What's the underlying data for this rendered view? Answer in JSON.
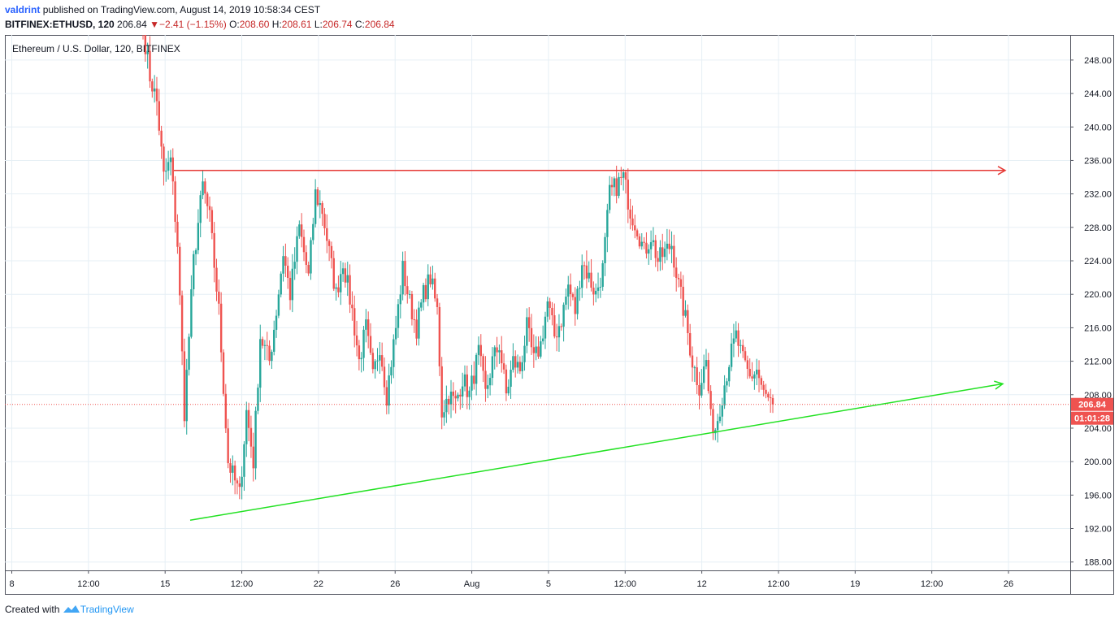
{
  "header": {
    "author": "valdrint",
    "published_text": "published on TradingView.com, August 14, 2019 10:58:34 CEST",
    "symbol": "BITFINEX:ETHUSD, 120",
    "last": "206.84",
    "change": "−2.41 (−1.15%)",
    "o_label": "O:",
    "o": "208.60",
    "h_label": "H:",
    "h": "208.61",
    "l_label": "L:",
    "l": "206.74",
    "c_label": "C:",
    "c": "206.84"
  },
  "chart_legend": "Ethereum / U.S. Dollar, 120, BITFINEX",
  "price_tag": {
    "price": "206.84",
    "countdown": "01:01:28"
  },
  "footer": {
    "created": "Created with",
    "brand": "TradingView"
  },
  "colors": {
    "up": "#26a69a",
    "down": "#ef5350",
    "resistance": "#e53935",
    "support": "#22e122",
    "price_line": "#ef5350",
    "grid": "#e6eff5"
  },
  "chart_data": {
    "type": "candlestick",
    "ylim": [
      187,
      251
    ],
    "y_ticks": [
      "188.00",
      "192.00",
      "196.00",
      "200.00",
      "204.00",
      "208.00",
      "212.00",
      "216.00",
      "220.00",
      "224.00",
      "228.00",
      "232.00",
      "236.00",
      "240.00",
      "244.00",
      "248.00"
    ],
    "x_ticks": [
      "8",
      "12:00",
      "15",
      "12:00",
      "22",
      "26",
      "Aug",
      "5",
      "12:00",
      "12",
      "12:00",
      "19",
      "12:00",
      "26"
    ],
    "last_price": 206.84,
    "resistance_price": 234.8,
    "support_trendline_prices": [
      193.0,
      209.3
    ],
    "anchors": [
      [
        0,
        252
      ],
      [
        3,
        246
      ],
      [
        6,
        243
      ],
      [
        9,
        234
      ],
      [
        12,
        236
      ],
      [
        15,
        226
      ],
      [
        18,
        206
      ],
      [
        22,
        224
      ],
      [
        26,
        233
      ],
      [
        29,
        229
      ],
      [
        33,
        218
      ],
      [
        37,
        200
      ],
      [
        42,
        196
      ],
      [
        45,
        206
      ],
      [
        48,
        200
      ],
      [
        51,
        215
      ],
      [
        55,
        212
      ],
      [
        58,
        218
      ],
      [
        61,
        225
      ],
      [
        64,
        220
      ],
      [
        68,
        228
      ],
      [
        72,
        222
      ],
      [
        75,
        232
      ],
      [
        78,
        230
      ],
      [
        81,
        225
      ],
      [
        84,
        220
      ],
      [
        87,
        224
      ],
      [
        91,
        218
      ],
      [
        94,
        212
      ],
      [
        97,
        216
      ],
      [
        100,
        210
      ],
      [
        103,
        214
      ],
      [
        106,
        208
      ],
      [
        110,
        216
      ],
      [
        113,
        223
      ],
      [
        116,
        219
      ],
      [
        119,
        216
      ],
      [
        122,
        220
      ],
      [
        125,
        222
      ],
      [
        128,
        218
      ],
      [
        130,
        206
      ],
      [
        133,
        208
      ],
      [
        136,
        207
      ],
      [
        139,
        210
      ],
      [
        142,
        208
      ],
      [
        146,
        213
      ],
      [
        149,
        208
      ],
      [
        152,
        212
      ],
      [
        155,
        214
      ],
      [
        158,
        208
      ],
      [
        161,
        212
      ],
      [
        164,
        211
      ],
      [
        167,
        216
      ],
      [
        170,
        212
      ],
      [
        173,
        214
      ],
      [
        176,
        219
      ],
      [
        179,
        215
      ],
      [
        182,
        217
      ],
      [
        185,
        221
      ],
      [
        188,
        218
      ],
      [
        191,
        224
      ],
      [
        194,
        222
      ],
      [
        197,
        220
      ],
      [
        200,
        223
      ],
      [
        203,
        232
      ],
      [
        206,
        233
      ],
      [
        209,
        234
      ],
      [
        212,
        230
      ],
      [
        215,
        228
      ],
      [
        218,
        225
      ],
      [
        221,
        227
      ],
      [
        224,
        224
      ],
      [
        227,
        225
      ],
      [
        230,
        226
      ],
      [
        233,
        221
      ],
      [
        236,
        217
      ],
      [
        239,
        212
      ],
      [
        242,
        209
      ],
      [
        245,
        212
      ],
      [
        247,
        205
      ],
      [
        249,
        204
      ],
      [
        252,
        208
      ],
      [
        255,
        212
      ],
      [
        258,
        215
      ],
      [
        261,
        212
      ],
      [
        264,
        210
      ],
      [
        267,
        211
      ],
      [
        270,
        208
      ],
      [
        273,
        207
      ],
      [
        274,
        206.84
      ]
    ]
  }
}
